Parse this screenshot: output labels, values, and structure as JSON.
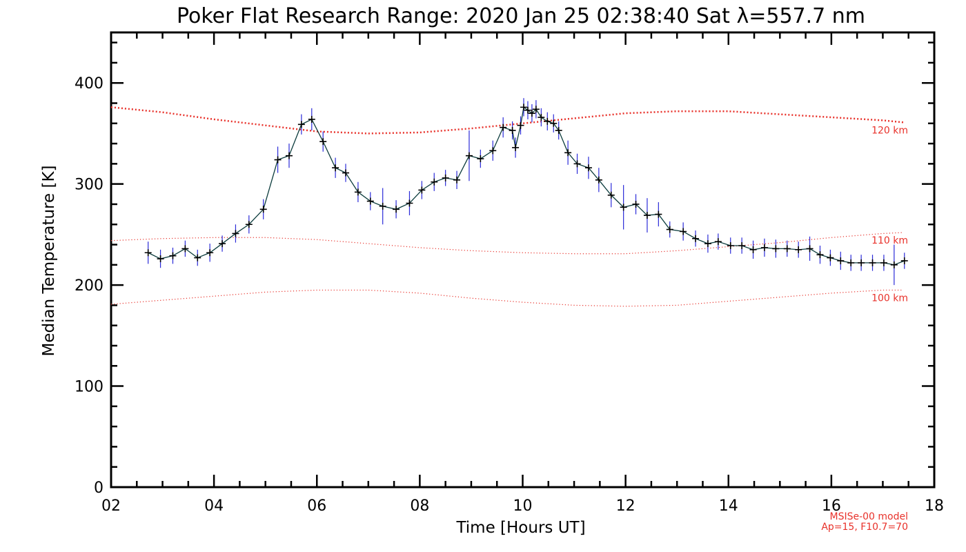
{
  "chart_data": {
    "type": "line",
    "title": "Poker Flat Research Range: 2020 Jan 25 02:38:40 Sat λ=557.7 nm",
    "xlabel": "Time [Hours UT]",
    "ylabel": "Median Temperature [K]",
    "xlim": [
      2,
      18
    ],
    "ylim": [
      0,
      450
    ],
    "xticks": [
      "02",
      "04",
      "06",
      "08",
      "10",
      "12",
      "14",
      "16",
      "18"
    ],
    "yticks": [
      "0",
      "100",
      "200",
      "300",
      "400"
    ],
    "grid": false,
    "colors": {
      "data_line": "#0b3b3c",
      "error_bar": "#2a2ad8",
      "marker": "#000000",
      "model": "#e8312a"
    },
    "series": [
      {
        "x": [
          2.72,
          2.96,
          3.2,
          3.44,
          3.68,
          3.92,
          4.16,
          4.42,
          4.68,
          4.96,
          5.24,
          5.46,
          5.7,
          5.9,
          6.12,
          6.36,
          6.56,
          6.8,
          7.04,
          7.28,
          7.54,
          7.8,
          8.04,
          8.28,
          8.5,
          8.72,
          8.96,
          9.18,
          9.42,
          9.62,
          9.8,
          9.86,
          9.96,
          10.02,
          10.1,
          10.18,
          10.26,
          10.36,
          10.48,
          10.6,
          10.7,
          10.88,
          11.06,
          11.28,
          11.48,
          11.72,
          11.96,
          12.2,
          12.42,
          12.64,
          12.86,
          13.12,
          13.36,
          13.6,
          13.8,
          14.04,
          14.26,
          14.48,
          14.7,
          14.92,
          15.14,
          15.36,
          15.58,
          15.78,
          15.98,
          16.18,
          16.38,
          16.58,
          16.8,
          17.02,
          17.22,
          17.42
        ],
        "values": [
          232,
          226,
          229,
          236,
          227,
          232,
          241,
          251,
          260,
          275,
          324,
          328,
          359,
          364,
          342,
          316,
          311,
          292,
          283,
          278,
          275,
          281,
          294,
          302,
          306,
          304,
          328,
          325,
          333,
          356,
          353,
          336,
          358,
          376,
          373,
          370,
          374,
          366,
          362,
          360,
          353,
          331,
          320,
          316,
          304,
          289,
          277,
          280,
          269,
          270,
          255,
          253,
          246,
          241,
          243,
          239,
          239,
          235,
          237,
          236,
          236,
          235,
          236,
          230,
          227,
          224,
          222,
          222,
          222,
          222,
          220,
          224
        ],
        "errors": [
          11,
          9,
          8,
          8,
          8,
          9,
          8,
          9,
          9,
          10,
          13,
          12,
          10,
          11,
          10,
          10,
          9,
          10,
          9,
          18,
          9,
          12,
          9,
          9,
          8,
          9,
          25,
          9,
          10,
          10,
          9,
          10,
          9,
          9,
          9,
          9,
          9,
          9,
          9,
          9,
          9,
          12,
          10,
          11,
          12,
          12,
          22,
          10,
          17,
          12,
          8,
          9,
          8,
          9,
          8,
          8,
          8,
          9,
          9,
          9,
          8,
          8,
          12,
          9,
          8,
          9,
          8,
          8,
          8,
          8,
          20,
          8
        ]
      }
    ],
    "model_curves": [
      {
        "label": "120 km",
        "x": [
          2,
          3,
          4,
          5,
          6,
          7,
          8,
          9,
          10,
          11,
          12,
          13,
          14,
          15,
          16,
          17,
          17.4
        ],
        "values": [
          376,
          371,
          364,
          358,
          352,
          350,
          351,
          355,
          360,
          365,
          370,
          372,
          372,
          369,
          366,
          363,
          361
        ]
      },
      {
        "label": "110 km",
        "x": [
          2,
          3,
          4,
          5,
          6,
          7,
          8,
          9,
          10,
          11,
          12,
          13,
          14,
          15,
          16,
          17,
          17.4
        ],
        "values": [
          244,
          246,
          247,
          247,
          245,
          241,
          237,
          234,
          232,
          231,
          231,
          234,
          238,
          242,
          247,
          251,
          252
        ]
      },
      {
        "label": "100 km",
        "x": [
          2,
          3,
          4,
          5,
          6,
          7,
          8,
          9,
          10,
          11,
          12,
          13,
          14,
          15,
          16,
          17,
          17.4
        ],
        "values": [
          181,
          185,
          189,
          193,
          195,
          195,
          192,
          187,
          183,
          180,
          179,
          180,
          184,
          188,
          192,
          195,
          195
        ]
      }
    ],
    "notes": [
      "MSISe-00 model",
      "Ap=15, F10.7=70"
    ]
  }
}
